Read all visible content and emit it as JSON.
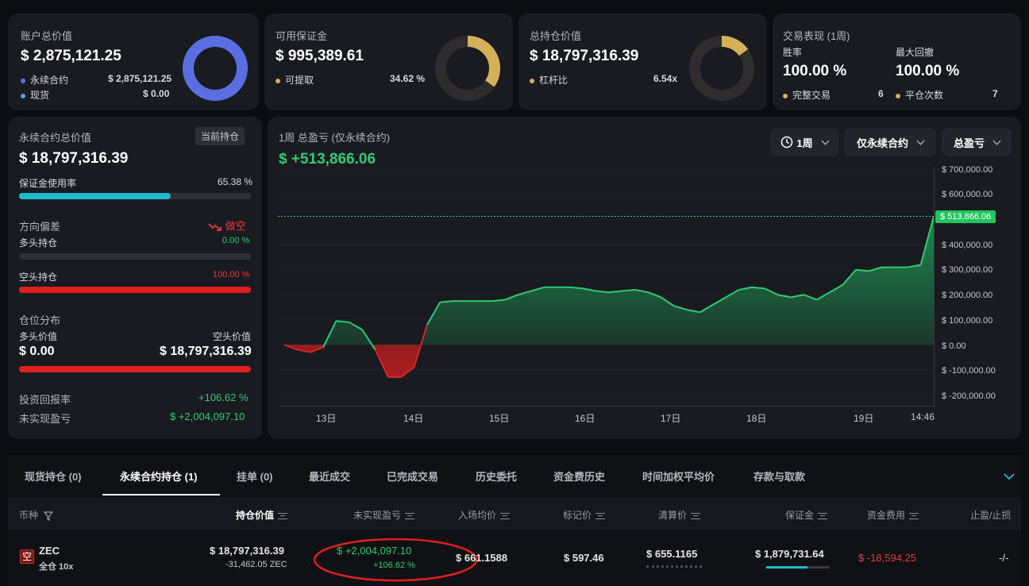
{
  "account": {
    "title": "账户总价值",
    "value": "$ 2,875,121.25",
    "rows": [
      {
        "label": "永续合约",
        "value": "$ 2,875,121.25",
        "color": "#5b6ee1"
      },
      {
        "label": "现货",
        "value": "$ 0.00",
        "color": "#5b9ee1"
      }
    ]
  },
  "margin": {
    "title": "可用保证金",
    "value": "$ 995,389.61",
    "row_label": "可提取",
    "row_value": "34.62 %",
    "fraction": 0.3462
  },
  "position": {
    "title": "总持仓价值",
    "value": "$ 18,797,316.39",
    "row_label": "杠杆比",
    "row_value": "6.54x",
    "fraction": 0.15
  },
  "performance": {
    "title": "交易表现 (1周)",
    "win_label": "胜率",
    "win_value": "100.00 %",
    "dd_label": "最大回撤",
    "dd_value": "100.00 %",
    "trades_label": "完整交易",
    "trades_value": "6",
    "close_label": "平仓次数",
    "close_value": "7"
  },
  "perp": {
    "title": "永续合约总价值",
    "badge": "当前持仓",
    "value": "$ 18,797,316.39",
    "usage_label": "保证金使用率",
    "usage_value": "65.38 %",
    "usage_fraction": 0.6538,
    "bias_label": "方向偏差",
    "bias_value": "做空",
    "long_label": "多头持仓",
    "long_value": "0.00 %",
    "long_fraction": 0,
    "short_label": "空头持仓",
    "short_value": "100.00 %",
    "short_fraction": 1,
    "dist_label": "仓位分布",
    "long_val_label": "多头价值",
    "short_val_label": "空头价值",
    "long_val": "$ 0.00",
    "short_val": "$ 18,797,316.39",
    "roi_label": "投资回报率",
    "roi_value": "+106.62 %",
    "upnl_label": "未实现盈亏",
    "upnl_value": "$ +2,004,097.10"
  },
  "chart": {
    "title": "1周 总盈亏 (仅永续合约)",
    "value": "$ +513,866.06",
    "period": "1周",
    "filter": "仅永续合约",
    "metric": "总盈亏",
    "marker": "$ 513,866.06",
    "yticks": [
      "$ 700,000.00",
      "$ 600,000.00",
      "$ 500,000.00",
      "$ 400,000.00",
      "$ 300,000.00",
      "$ 200,000.00",
      "$ 100,000.00",
      "$ 0.00",
      "$ -100,000.00",
      "$ -200,000.00"
    ],
    "xticks": [
      "13日",
      "14日",
      "15日",
      "16日",
      "17日",
      "18日",
      "19日",
      "14:46"
    ]
  },
  "chart_data": {
    "type": "line",
    "ylim": [
      -200000,
      700000
    ],
    "x": [
      0,
      2,
      4,
      6,
      8,
      10,
      12,
      14,
      16,
      18,
      20,
      22,
      24,
      26,
      28,
      30,
      32,
      34,
      36,
      38,
      40,
      42,
      44,
      46,
      48,
      50,
      52,
      54,
      56,
      58,
      60,
      62,
      64,
      66,
      68,
      70,
      72,
      74,
      76,
      78,
      80,
      82,
      84,
      86,
      88,
      90,
      92,
      94,
      96,
      98,
      100
    ],
    "values": [
      0,
      -20000,
      -30000,
      -10000,
      95000,
      90000,
      60000,
      -20000,
      -130000,
      -130000,
      -90000,
      80000,
      170000,
      175000,
      175000,
      175000,
      175000,
      180000,
      200000,
      215000,
      230000,
      230000,
      230000,
      225000,
      215000,
      210000,
      215000,
      220000,
      210000,
      190000,
      155000,
      140000,
      130000,
      160000,
      190000,
      220000,
      230000,
      225000,
      200000,
      190000,
      200000,
      180000,
      210000,
      240000,
      300000,
      295000,
      310000,
      310000,
      310000,
      320000,
      513866
    ]
  },
  "tabs": [
    "现货持仓 (0)",
    "永续合约持仓 (1)",
    "挂单 (0)",
    "最近成交",
    "已完成交易",
    "历史委托",
    "资金费历史",
    "时间加权平均价",
    "存款与取款"
  ],
  "table": {
    "headers": [
      "币种",
      "持仓价值",
      "未实现盈亏",
      "入场均价",
      "标记价",
      "清算价",
      "保证金",
      "资金费用",
      "止盈/止损"
    ],
    "row": {
      "side": "空",
      "coin": "ZEC",
      "mode": "全仓 10x",
      "value": "$ 18,797,316.39",
      "qty": "-31,462.05 ZEC",
      "upnl": "$ +2,004,097.10",
      "upnl_pct": "+106.62 %",
      "entry": "$ 661.1588",
      "mark": "$ 597.46",
      "liq": "$ 655.1165",
      "margin": "$ 1,879,731.64",
      "funding": "$ -18,594.25",
      "tpsl": "-/-"
    }
  }
}
